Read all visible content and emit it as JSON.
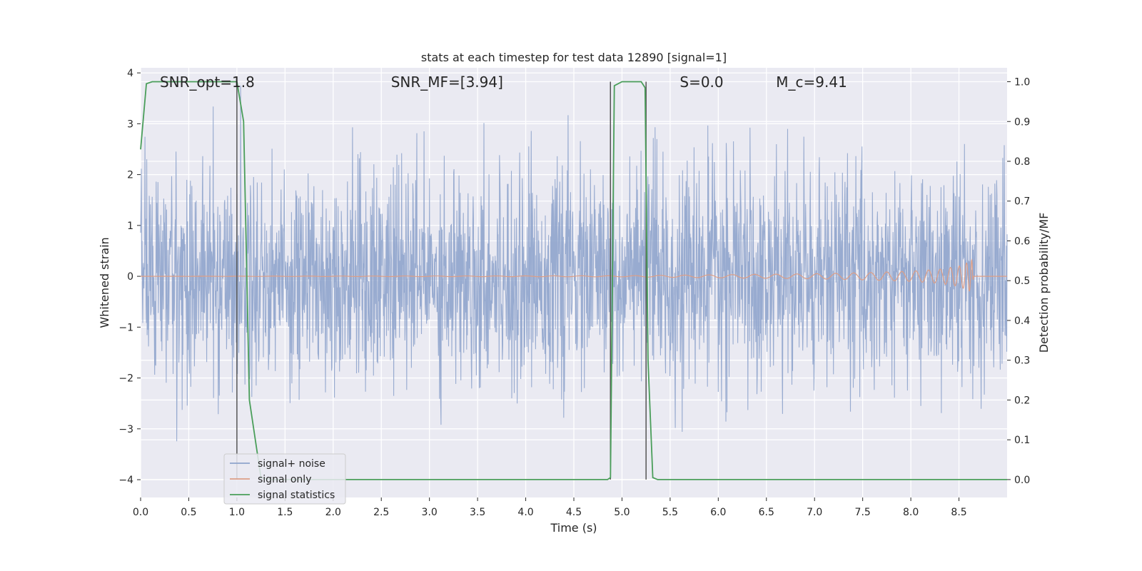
{
  "chart_data": {
    "type": "line",
    "title": "stats at each timestep for test data 12890 [signal=1]",
    "xlabel": "Time (s)",
    "ylabel": "Whitened strain",
    "ylabel_right": "Detection probability/MF",
    "xlim": [
      0,
      9
    ],
    "ylim_left": [
      -4.35,
      4.1
    ],
    "ylim_right": [
      -0.045,
      1.035
    ],
    "xticks": [
      "0.0",
      "0.5",
      "1.0",
      "1.5",
      "2.0",
      "2.5",
      "3.0",
      "3.5",
      "4.0",
      "4.5",
      "5.0",
      "5.5",
      "6.0",
      "6.5",
      "7.0",
      "7.5",
      "8.0",
      "8.5"
    ],
    "yticks_left": [
      "4",
      "3",
      "2",
      "1",
      "0",
      "−1",
      "−2",
      "−3",
      "−4"
    ],
    "yticks_right": [
      "1.0",
      "0.9",
      "0.8",
      "0.7",
      "0.6",
      "0.5",
      "0.4",
      "0.3",
      "0.2",
      "0.1",
      "0.0"
    ],
    "grid": true,
    "legend_position": "lower-left",
    "annotations": [
      {
        "text": "SNR_opt=1.8",
        "x": 0.2
      },
      {
        "text": "SNR_MF=[3.94]",
        "x": 2.6
      },
      {
        "text": "S=0.0",
        "x": 5.6
      },
      {
        "text": "M_c=9.41",
        "x": 6.6
      }
    ],
    "series": [
      {
        "name": "signal+ noise",
        "axis": "left",
        "color": "#8fa4cc",
        "description": "whitened noise, roughly uniform amplitude ~±2 with spikes to ±3.7"
      },
      {
        "name": "signal only",
        "axis": "left",
        "color": "#dd9e86",
        "envelope": {
          "x": [
            0,
            5.0,
            6.0,
            7.0,
            7.5,
            8.0,
            8.3,
            8.5,
            8.6,
            8.64,
            8.65,
            9.0
          ],
          "amplitude": [
            0,
            0.01,
            0.03,
            0.05,
            0.07,
            0.1,
            0.14,
            0.2,
            0.28,
            0.33,
            0,
            0
          ]
        }
      },
      {
        "name": "signal statistics",
        "axis": "right",
        "color": "#4a9e5a",
        "x": [
          0.0,
          0.06,
          0.12,
          0.5,
          1.0,
          1.07,
          1.13,
          1.25,
          1.35,
          4.85,
          4.88,
          4.92,
          5.0,
          5.2,
          5.24,
          5.27,
          5.32,
          5.37,
          9.0
        ],
        "y": [
          0.83,
          0.995,
          1.0,
          1.0,
          1.0,
          0.9,
          0.2,
          0.005,
          0.0,
          0.0,
          0.005,
          0.99,
          1.0,
          1.0,
          0.985,
          0.3,
          0.005,
          0.0,
          0.0
        ]
      }
    ],
    "vertical_lines": [
      1.0,
      4.88,
      5.25
    ],
    "vertical_line_color": "#555555"
  },
  "colors": {
    "plot_background": "#eaeaf2",
    "grid": "#ffffff"
  }
}
